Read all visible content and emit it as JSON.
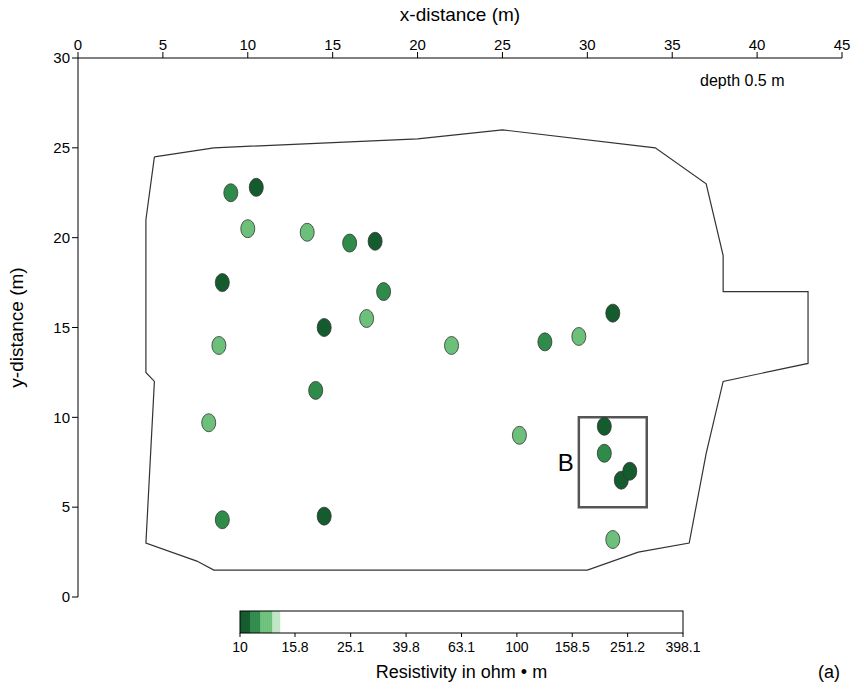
{
  "chart_data": {
    "type": "contour",
    "title": "depth 0.5 m",
    "x_label": "x-distance (m)",
    "y_label": "y-distance (m)",
    "xlim": [
      0,
      45
    ],
    "xticks": [
      0,
      5,
      10,
      15,
      20,
      25,
      30,
      35,
      40,
      45
    ],
    "ylim": [
      0,
      30
    ],
    "yticks": [
      0,
      5,
      10,
      15,
      20,
      25,
      30
    ],
    "panel_label": "(a)",
    "box": {
      "label": "B",
      "x": [
        29.5,
        33.5
      ],
      "y": [
        5,
        10
      ]
    },
    "plan_outline": [
      [
        4.5,
        24.5
      ],
      [
        8,
        25
      ],
      [
        20,
        25.5
      ],
      [
        25,
        26
      ],
      [
        34,
        25
      ],
      [
        37,
        23
      ],
      [
        38,
        19
      ],
      [
        38,
        17
      ],
      [
        43,
        17
      ],
      [
        43,
        13
      ],
      [
        38,
        12
      ],
      [
        37,
        8
      ],
      [
        36,
        3
      ],
      [
        33,
        2.5
      ],
      [
        30,
        1.5
      ],
      [
        8,
        1.5
      ],
      [
        7,
        2
      ],
      [
        4,
        3
      ],
      [
        4.5,
        12
      ],
      [
        4,
        12.5
      ],
      [
        4,
        21
      ],
      [
        4.5,
        24.5
      ]
    ],
    "anomalies": [
      {
        "x": 9,
        "y": 22.5,
        "resistivity": 11
      },
      {
        "x": 10.5,
        "y": 22.8,
        "resistivity": 10.5
      },
      {
        "x": 10,
        "y": 20.5,
        "resistivity": 12
      },
      {
        "x": 8.5,
        "y": 17.5,
        "resistivity": 10.5
      },
      {
        "x": 13.5,
        "y": 20.3,
        "resistivity": 12
      },
      {
        "x": 16,
        "y": 19.7,
        "resistivity": 11
      },
      {
        "x": 17.5,
        "y": 19.8,
        "resistivity": 10.5
      },
      {
        "x": 14.5,
        "y": 15,
        "resistivity": 10.5
      },
      {
        "x": 17,
        "y": 15.5,
        "resistivity": 12
      },
      {
        "x": 18,
        "y": 17,
        "resistivity": 11
      },
      {
        "x": 14,
        "y": 11.5,
        "resistivity": 11
      },
      {
        "x": 7.7,
        "y": 9.7,
        "resistivity": 12
      },
      {
        "x": 8.5,
        "y": 4.3,
        "resistivity": 11
      },
      {
        "x": 14.5,
        "y": 4.5,
        "resistivity": 10.5
      },
      {
        "x": 8.3,
        "y": 14,
        "resistivity": 12
      },
      {
        "x": 22,
        "y": 14,
        "resistivity": 12
      },
      {
        "x": 27.5,
        "y": 14.2,
        "resistivity": 11
      },
      {
        "x": 29.5,
        "y": 14.5,
        "resistivity": 12.5
      },
      {
        "x": 31.5,
        "y": 15.8,
        "resistivity": 10.5
      },
      {
        "x": 26,
        "y": 9,
        "resistivity": 12
      },
      {
        "x": 31,
        "y": 9.5,
        "resistivity": 10.5
      },
      {
        "x": 31,
        "y": 8,
        "resistivity": 11
      },
      {
        "x": 32,
        "y": 6.5,
        "resistivity": 10
      },
      {
        "x": 32.5,
        "y": 7,
        "resistivity": 10.5
      },
      {
        "x": 31.5,
        "y": 3.2,
        "resistivity": 12
      }
    ],
    "colorbar": {
      "label": "Resistivity in ohm • m",
      "range": [
        10,
        398.1
      ],
      "ticks": [
        10,
        15.8,
        25.1,
        39.8,
        63.1,
        100,
        158.5,
        251.2,
        398.1
      ]
    }
  }
}
